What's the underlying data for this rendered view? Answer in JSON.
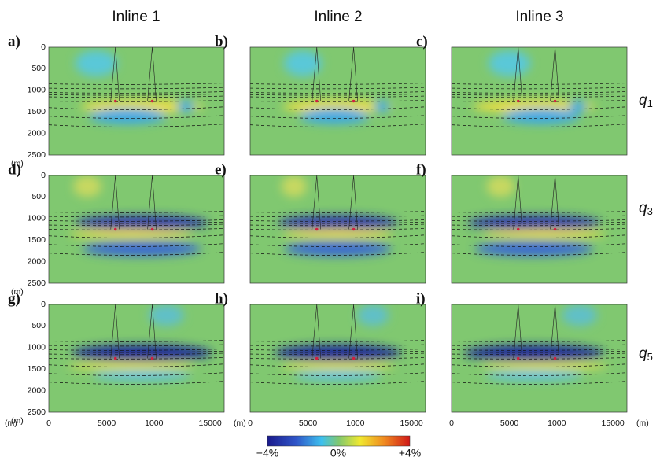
{
  "columns": [
    "Inline 1",
    "Inline 2",
    "Inline 3"
  ],
  "panels": [
    "a)",
    "b)",
    "c)",
    "d)",
    "e)",
    "f)",
    "g)",
    "h)",
    "i)"
  ],
  "y_axis": {
    "ticks": [
      "0",
      "500",
      "1000",
      "1500",
      "2000",
      "2500"
    ],
    "unit": "(m)"
  },
  "x_axis": {
    "ticks": [
      "0",
      "5000",
      "1000",
      "15000"
    ],
    "unit": "(m)"
  },
  "rows": [
    {
      "symbol": "q",
      "subscript": "1"
    },
    {
      "symbol": "q",
      "subscript": "3"
    },
    {
      "symbol": "q",
      "subscript": "5"
    }
  ],
  "colorbar": {
    "labels": [
      "−4%",
      "0%",
      "+4%"
    ]
  }
}
